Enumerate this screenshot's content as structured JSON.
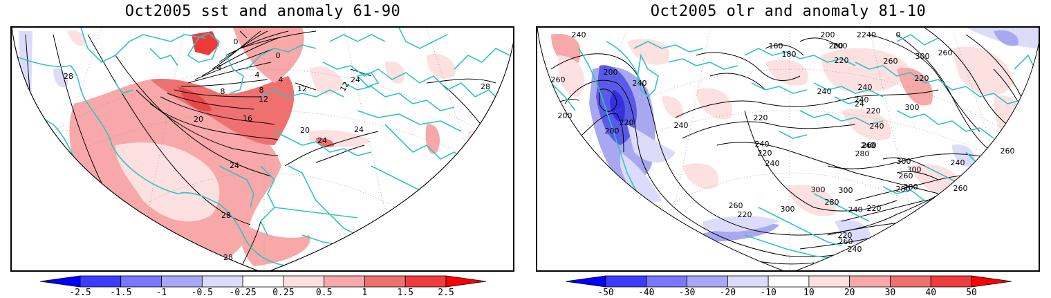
{
  "titles": {
    "left": "Oct2005 sst and anomaly 61-90",
    "right": "Oct2005 olr and anomaly 81-10"
  },
  "colors": {
    "coast": "#2fc4c4",
    "pos1": "#fde0e0",
    "pos2": "#f8a8a8",
    "pos3": "#f07070",
    "neg1": "#dcdcfa",
    "neg2": "#a8a8f0",
    "neg3": "#5a5ae8",
    "contour": "#000000",
    "grid": "#9a9a9a"
  },
  "left_colorbar": {
    "labels": [
      "-2.5",
      "-1.5",
      "-1",
      "-0.5",
      "-0.25",
      "0.25",
      "0.5",
      "1",
      "1.5",
      "2.5"
    ]
  },
  "right_colorbar": {
    "labels": [
      "-50",
      "-40",
      "-30",
      "-20",
      "-10",
      "10",
      "20",
      "30",
      "40",
      "50"
    ]
  },
  "left_contour_labels": [
    "0",
    "0",
    "4",
    "4",
    "4",
    "8",
    "8",
    "12",
    "12",
    "16",
    "20",
    "20",
    "24",
    "24",
    "24",
    "28",
    "28",
    "28",
    "28",
    "24",
    "12"
  ],
  "right_contour_labels": [
    "240",
    "200",
    "160",
    "180",
    "2240",
    "0",
    "200",
    "200",
    "220",
    "260",
    "300",
    "220",
    "260",
    "200",
    "260",
    "240",
    "200",
    "220",
    "240",
    "200",
    "220",
    "240",
    "240",
    "24",
    "240",
    "220",
    "300",
    "240",
    "260",
    "240",
    "220",
    "240",
    "240",
    "260",
    "300",
    "300",
    "280",
    "260",
    "280",
    "280",
    "260",
    "240",
    "260",
    "300",
    "300",
    "220",
    "260",
    "280",
    "300",
    "220",
    "240",
    "220",
    "240",
    "260"
  ]
}
